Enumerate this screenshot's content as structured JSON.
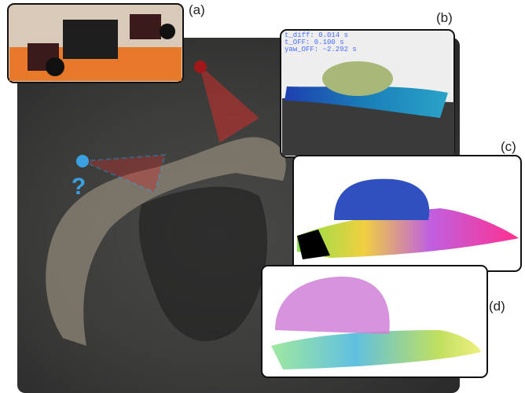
{
  "panels": [
    {
      "label": "(a)"
    },
    {
      "label": "(b)",
      "overlay": [
        "t_diff: 0.014 s",
        "t_OFF: 0.100 s",
        "yaw_OFF: −2.292 s"
      ]
    },
    {
      "label": "(c)"
    },
    {
      "label": "(d)"
    }
  ],
  "question_mark": "?"
}
